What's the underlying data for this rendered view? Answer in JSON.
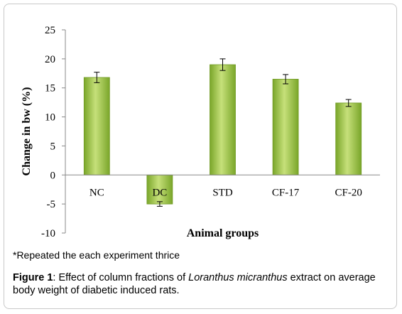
{
  "chart_data": {
    "type": "bar",
    "categories": [
      "NC",
      "DC",
      "STD",
      "CF-17",
      "CF-20"
    ],
    "values": [
      16.8,
      -5.0,
      19.0,
      16.5,
      12.4
    ],
    "errors": [
      0.9,
      0.4,
      1.0,
      0.8,
      0.6
    ],
    "xlabel": "Animal groups",
    "ylabel": "Change in bw (%)",
    "ylim": [
      -10,
      25
    ],
    "yticks": [
      -10,
      -5,
      0,
      5,
      10,
      15,
      20,
      25
    ],
    "bar_color": "#8cb832",
    "bar_highlight": "#c6e07a",
    "grid": false
  },
  "note": "*Repeated the each experiment thrice",
  "caption": {
    "label": "Figure 1",
    "text_before": ": Effect of column fractions of ",
    "italic": "Loranthus micranthus",
    "text_after": " extract on average body weight of diabetic induced rats."
  }
}
